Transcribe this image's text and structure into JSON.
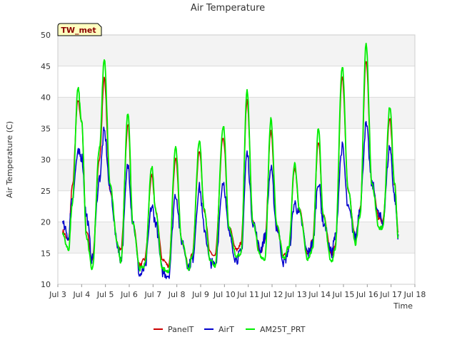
{
  "chart_data": {
    "type": "line",
    "title": "Air Temperature",
    "xlabel": "Time",
    "ylabel": "Air Temperature (C)",
    "station_label": "TW_met",
    "ylim": [
      10,
      50
    ],
    "xlim": [
      3,
      18
    ],
    "yticks": [
      10,
      15,
      20,
      25,
      30,
      35,
      40,
      45,
      50
    ],
    "xticks": [
      {
        "v": 3,
        "label": "Jul 3"
      },
      {
        "v": 4,
        "label": "Jul 4"
      },
      {
        "v": 5,
        "label": "Jul 5"
      },
      {
        "v": 6,
        "label": "Jul 6"
      },
      {
        "v": 7,
        "label": "Jul 7"
      },
      {
        "v": 8,
        "label": "Jul 8"
      },
      {
        "v": 9,
        "label": "Jul 9"
      },
      {
        "v": 10,
        "label": "Jul 10"
      },
      {
        "v": 11,
        "label": "Jul 11"
      },
      {
        "v": 12,
        "label": "Jul 12"
      },
      {
        "v": 13,
        "label": "Jul 13"
      },
      {
        "v": 14,
        "label": "Jul 14"
      },
      {
        "v": 15,
        "label": "Jul 15"
      },
      {
        "v": 16,
        "label": "Jul 16"
      },
      {
        "v": 17,
        "label": "Jul 17"
      },
      {
        "v": 18,
        "label": "Jul 18"
      }
    ],
    "grid": true,
    "legend_position": "bottom",
    "series": [
      {
        "name": "PanelT",
        "color": "#cc0000",
        "points": [
          [
            3.2,
            18.5
          ],
          [
            3.45,
            17.0
          ],
          [
            3.6,
            25.5
          ],
          [
            3.85,
            39.5
          ],
          [
            4.0,
            36.0
          ],
          [
            4.2,
            18.5
          ],
          [
            4.45,
            14.0
          ],
          [
            4.75,
            30.0
          ],
          [
            4.95,
            43.0
          ],
          [
            5.2,
            25.0
          ],
          [
            5.5,
            16.5
          ],
          [
            5.65,
            15.5
          ],
          [
            5.95,
            35.5
          ],
          [
            6.15,
            20.0
          ],
          [
            6.45,
            13.0
          ],
          [
            6.65,
            14.0
          ],
          [
            6.95,
            27.5
          ],
          [
            7.1,
            22.0
          ],
          [
            7.4,
            14.0
          ],
          [
            7.65,
            13.0
          ],
          [
            7.95,
            30.0
          ],
          [
            8.2,
            17.0
          ],
          [
            8.5,
            13.0
          ],
          [
            8.65,
            15.0
          ],
          [
            8.95,
            31.5
          ],
          [
            9.15,
            22.0
          ],
          [
            9.4,
            15.0
          ],
          [
            9.6,
            14.5
          ],
          [
            9.95,
            33.5
          ],
          [
            10.2,
            19.0
          ],
          [
            10.5,
            15.5
          ],
          [
            10.7,
            16.5
          ],
          [
            10.95,
            39.5
          ],
          [
            11.2,
            20.0
          ],
          [
            11.5,
            15.0
          ],
          [
            11.7,
            17.0
          ],
          [
            11.95,
            34.5
          ],
          [
            12.2,
            19.0
          ],
          [
            12.5,
            14.5
          ],
          [
            12.7,
            16.0
          ],
          [
            12.95,
            28.5
          ],
          [
            13.15,
            22.0
          ],
          [
            13.5,
            15.0
          ],
          [
            13.7,
            17.0
          ],
          [
            13.95,
            33.0
          ],
          [
            14.15,
            21.0
          ],
          [
            14.5,
            14.5
          ],
          [
            14.65,
            16.0
          ],
          [
            14.95,
            43.0
          ],
          [
            15.2,
            25.0
          ],
          [
            15.5,
            17.5
          ],
          [
            15.7,
            22.0
          ],
          [
            15.95,
            46.0
          ],
          [
            16.2,
            26.0
          ],
          [
            16.5,
            20.5
          ],
          [
            16.65,
            20.0
          ],
          [
            16.95,
            36.5
          ],
          [
            17.15,
            26.0
          ],
          [
            17.3,
            18.5
          ]
        ]
      },
      {
        "name": "AirT",
        "color": "#0000cc",
        "points": [
          [
            3.2,
            19.5
          ],
          [
            3.45,
            17.5
          ],
          [
            3.6,
            24.0
          ],
          [
            3.85,
            31.0
          ],
          [
            4.0,
            30.5
          ],
          [
            4.2,
            21.0
          ],
          [
            4.45,
            14.0
          ],
          [
            4.75,
            27.0
          ],
          [
            4.95,
            34.5
          ],
          [
            5.2,
            25.0
          ],
          [
            5.5,
            16.5
          ],
          [
            5.65,
            14.0
          ],
          [
            5.95,
            29.0
          ],
          [
            6.15,
            20.0
          ],
          [
            6.45,
            11.5
          ],
          [
            6.65,
            12.5
          ],
          [
            6.95,
            22.5
          ],
          [
            7.1,
            20.0
          ],
          [
            7.4,
            12.0
          ],
          [
            7.65,
            11.5
          ],
          [
            7.95,
            24.5
          ],
          [
            8.2,
            17.0
          ],
          [
            8.5,
            13.0
          ],
          [
            8.65,
            14.0
          ],
          [
            8.95,
            25.5
          ],
          [
            9.15,
            19.0
          ],
          [
            9.4,
            13.5
          ],
          [
            9.6,
            13.0
          ],
          [
            9.95,
            26.5
          ],
          [
            10.2,
            18.0
          ],
          [
            10.5,
            14.0
          ],
          [
            10.7,
            15.0
          ],
          [
            10.95,
            31.0
          ],
          [
            11.2,
            20.0
          ],
          [
            11.5,
            15.5
          ],
          [
            11.7,
            17.5
          ],
          [
            11.95,
            28.5
          ],
          [
            12.2,
            19.0
          ],
          [
            12.5,
            13.5
          ],
          [
            12.7,
            15.5
          ],
          [
            12.95,
            23.0
          ],
          [
            13.15,
            21.0
          ],
          [
            13.5,
            15.0
          ],
          [
            13.7,
            16.5
          ],
          [
            13.95,
            26.5
          ],
          [
            14.15,
            20.0
          ],
          [
            14.5,
            15.0
          ],
          [
            14.65,
            17.5
          ],
          [
            14.95,
            32.0
          ],
          [
            15.2,
            22.0
          ],
          [
            15.5,
            17.5
          ],
          [
            15.7,
            22.5
          ],
          [
            15.95,
            35.5
          ],
          [
            16.2,
            26.0
          ],
          [
            16.5,
            21.0
          ],
          [
            16.65,
            20.0
          ],
          [
            16.95,
            32.0
          ],
          [
            17.15,
            24.0
          ],
          [
            17.3,
            18.0
          ]
        ]
      },
      {
        "name": "AM25T_PRT",
        "color": "#00ee00",
        "points": [
          [
            3.2,
            18.0
          ],
          [
            3.45,
            15.5
          ],
          [
            3.6,
            22.5
          ],
          [
            3.85,
            41.5
          ],
          [
            4.0,
            36.0
          ],
          [
            4.2,
            17.5
          ],
          [
            4.45,
            12.5
          ],
          [
            4.75,
            32.0
          ],
          [
            4.95,
            46.0
          ],
          [
            5.2,
            26.0
          ],
          [
            5.5,
            16.5
          ],
          [
            5.65,
            13.5
          ],
          [
            5.95,
            37.5
          ],
          [
            6.15,
            20.0
          ],
          [
            6.45,
            12.5
          ],
          [
            6.65,
            13.0
          ],
          [
            6.95,
            29.0
          ],
          [
            7.1,
            22.0
          ],
          [
            7.4,
            12.5
          ],
          [
            7.65,
            12.0
          ],
          [
            7.95,
            32.0
          ],
          [
            8.2,
            17.0
          ],
          [
            8.5,
            12.5
          ],
          [
            8.65,
            14.5
          ],
          [
            8.95,
            33.0
          ],
          [
            9.15,
            22.0
          ],
          [
            9.4,
            14.0
          ],
          [
            9.6,
            13.0
          ],
          [
            9.95,
            35.5
          ],
          [
            10.2,
            19.0
          ],
          [
            10.5,
            14.5
          ],
          [
            10.7,
            15.0
          ],
          [
            10.95,
            41.0
          ],
          [
            11.2,
            20.0
          ],
          [
            11.5,
            14.5
          ],
          [
            11.7,
            14.0
          ],
          [
            11.95,
            36.5
          ],
          [
            12.2,
            19.5
          ],
          [
            12.5,
            14.0
          ],
          [
            12.7,
            16.0
          ],
          [
            12.95,
            29.5
          ],
          [
            13.15,
            22.0
          ],
          [
            13.5,
            14.0
          ],
          [
            13.7,
            15.5
          ],
          [
            13.95,
            35.0
          ],
          [
            14.15,
            21.0
          ],
          [
            14.5,
            13.5
          ],
          [
            14.65,
            15.5
          ],
          [
            14.95,
            45.0
          ],
          [
            15.2,
            25.0
          ],
          [
            15.5,
            16.5
          ],
          [
            15.7,
            21.0
          ],
          [
            15.95,
            48.5
          ],
          [
            16.2,
            26.0
          ],
          [
            16.5,
            19.0
          ],
          [
            16.65,
            19.0
          ],
          [
            16.95,
            38.5
          ],
          [
            17.15,
            26.0
          ],
          [
            17.3,
            17.5
          ]
        ]
      }
    ]
  }
}
